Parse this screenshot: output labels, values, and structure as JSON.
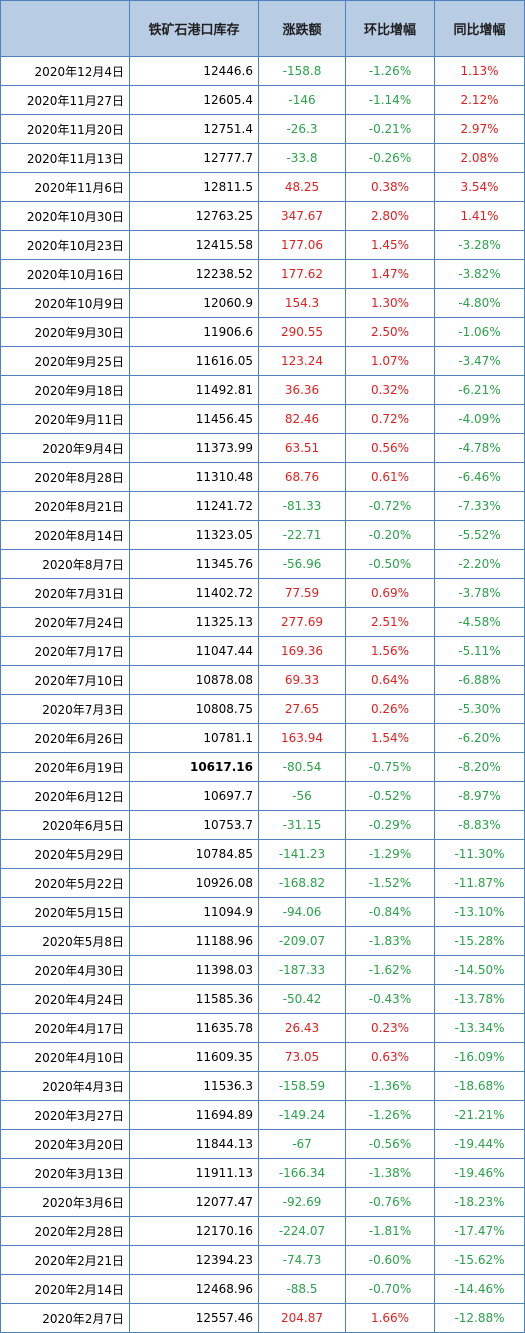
{
  "table": {
    "headers": [
      "",
      "铁矿石港口库存",
      "涨跌额",
      "环比增幅",
      "同比增幅"
    ],
    "rows": [
      [
        "2020年12月4日",
        "12446.6",
        "-158.8",
        "-1.26%",
        "1.13%"
      ],
      [
        "2020年11月27日",
        "12605.4",
        "-146",
        "-1.14%",
        "2.12%"
      ],
      [
        "2020年11月20日",
        "12751.4",
        "-26.3",
        "-0.21%",
        "2.97%"
      ],
      [
        "2020年11月13日",
        "12777.7",
        "-33.8",
        "-0.26%",
        "2.08%"
      ],
      [
        "2020年11月6日",
        "12811.5",
        "48.25",
        "0.38%",
        "3.54%"
      ],
      [
        "2020年10月30日",
        "12763.25",
        "347.67",
        "2.80%",
        "1.41%"
      ],
      [
        "2020年10月23日",
        "12415.58",
        "177.06",
        "1.45%",
        "-3.28%"
      ],
      [
        "2020年10月16日",
        "12238.52",
        "177.62",
        "1.47%",
        "-3.82%"
      ],
      [
        "2020年10月9日",
        "12060.9",
        "154.3",
        "1.30%",
        "-4.80%"
      ],
      [
        "2020年9月30日",
        "11906.6",
        "290.55",
        "2.50%",
        "-1.06%"
      ],
      [
        "2020年9月25日",
        "11616.05",
        "123.24",
        "1.07%",
        "-3.47%"
      ],
      [
        "2020年9月18日",
        "11492.81",
        "36.36",
        "0.32%",
        "-6.21%"
      ],
      [
        "2020年9月11日",
        "11456.45",
        "82.46",
        "0.72%",
        "-4.09%"
      ],
      [
        "2020年9月4日",
        "11373.99",
        "63.51",
        "0.56%",
        "-4.78%"
      ],
      [
        "2020年8月28日",
        "11310.48",
        "68.76",
        "0.61%",
        "-6.46%"
      ],
      [
        "2020年8月21日",
        "11241.72",
        "-81.33",
        "-0.72%",
        "-7.33%"
      ],
      [
        "2020年8月14日",
        "11323.05",
        "-22.71",
        "-0.20%",
        "-5.52%"
      ],
      [
        "2020年8月7日",
        "11345.76",
        "-56.96",
        "-0.50%",
        "-2.20%"
      ],
      [
        "2020年7月31日",
        "11402.72",
        "77.59",
        "0.69%",
        "-3.78%"
      ],
      [
        "2020年7月24日",
        "11325.13",
        "277.69",
        "2.51%",
        "-4.58%"
      ],
      [
        "2020年7月17日",
        "11047.44",
        "169.36",
        "1.56%",
        "-5.11%"
      ],
      [
        "2020年7月10日",
        "10878.08",
        "69.33",
        "0.64%",
        "-6.88%"
      ],
      [
        "2020年7月3日",
        "10808.75",
        "27.65",
        "0.26%",
        "-5.30%"
      ],
      [
        "2020年6月26日",
        "10781.1",
        "163.94",
        "1.54%",
        "-6.20%"
      ],
      [
        "2020年6月19日",
        "10617.16",
        "-80.54",
        "-0.75%",
        "-8.20%"
      ],
      [
        "2020年6月12日",
        "10697.7",
        "-56",
        "-0.52%",
        "-8.97%"
      ],
      [
        "2020年6月5日",
        "10753.7",
        "-31.15",
        "-0.29%",
        "-8.83%"
      ],
      [
        "2020年5月29日",
        "10784.85",
        "-141.23",
        "-1.29%",
        "-11.30%"
      ],
      [
        "2020年5月22日",
        "10926.08",
        "-168.82",
        "-1.52%",
        "-11.87%"
      ],
      [
        "2020年5月15日",
        "11094.9",
        "-94.06",
        "-0.84%",
        "-13.10%"
      ],
      [
        "2020年5月8日",
        "11188.96",
        "-209.07",
        "-1.83%",
        "-15.28%"
      ],
      [
        "2020年4月30日",
        "11398.03",
        "-187.33",
        "-1.62%",
        "-14.50%"
      ],
      [
        "2020年4月24日",
        "11585.36",
        "-50.42",
        "-0.43%",
        "-13.78%"
      ],
      [
        "2020年4月17日",
        "11635.78",
        "26.43",
        "0.23%",
        "-13.34%"
      ],
      [
        "2020年4月10日",
        "11609.35",
        "73.05",
        "0.63%",
        "-16.09%"
      ],
      [
        "2020年4月3日",
        "11536.3",
        "-158.59",
        "-1.36%",
        "-18.68%"
      ],
      [
        "2020年3月27日",
        "11694.89",
        "-149.24",
        "-1.26%",
        "-21.21%"
      ],
      [
        "2020年3月20日",
        "11844.13",
        "-67",
        "-0.56%",
        "-19.44%"
      ],
      [
        "2020年3月13日",
        "11911.13",
        "-166.34",
        "-1.38%",
        "-19.46%"
      ],
      [
        "2020年3月6日",
        "12077.47",
        "-92.69",
        "-0.76%",
        "-18.23%"
      ],
      [
        "2020年2月28日",
        "12170.16",
        "-224.07",
        "-1.81%",
        "-17.47%"
      ],
      [
        "2020年2月21日",
        "12394.23",
        "-74.73",
        "-0.60%",
        "-15.62%"
      ],
      [
        "2020年2月14日",
        "12468.96",
        "-88.5",
        "-0.70%",
        "-14.46%"
      ],
      [
        "2020年2月7日",
        "12557.46",
        "204.87",
        "1.66%",
        "-12.88%"
      ]
    ],
    "bold_cell": {
      "row": 24,
      "col": 1
    }
  },
  "colors": {
    "header_bg": "#b8cce4",
    "border": "#4f81bd",
    "positive": "#e02020",
    "negative": "#2aa24a"
  }
}
